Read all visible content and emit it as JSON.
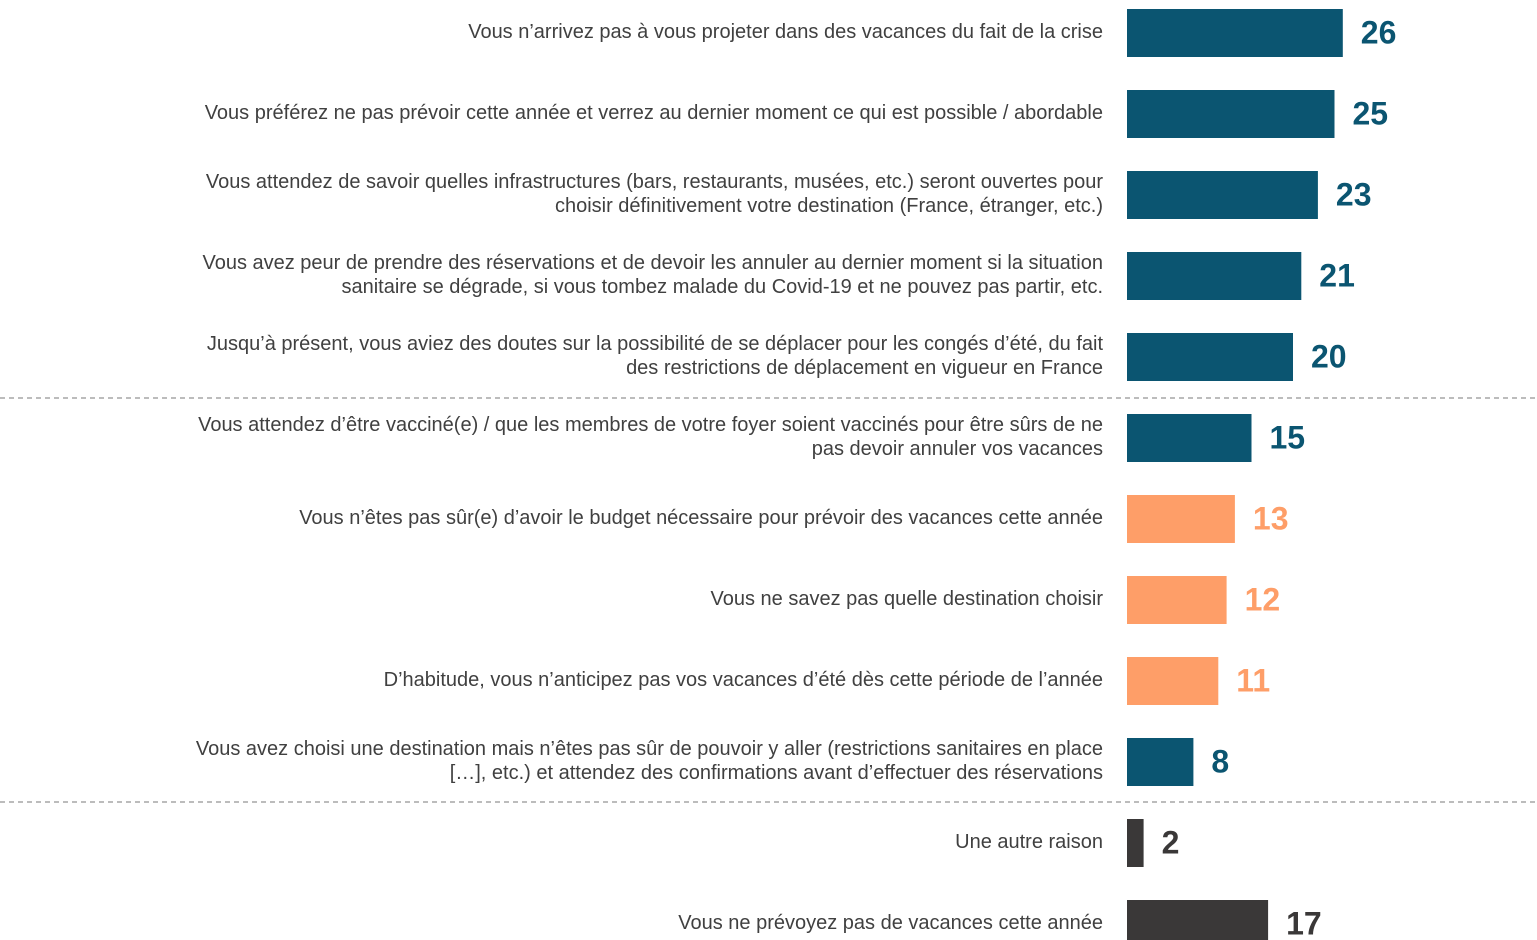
{
  "chart_data": {
    "type": "bar",
    "orientation": "horizontal",
    "categories": [
      "Vous n’arrivez pas à vous projeter dans des vacances du fait de la crise",
      "Vous préférez ne pas prévoir cette année et verrez au dernier moment ce qui est possible / abordable",
      "Vous attendez de savoir quelles infrastructures (bars, restaurants, musées, etc.) seront ouvertes pour\nchoisir définitivement votre destination (France, étranger, etc.)",
      "Vous avez peur de prendre des réservations et de devoir les annuler au dernier moment si la situation\nsanitaire se dégrade, si vous tombez malade du Covid-19 et ne pouvez pas partir, etc.",
      "Jusqu’à présent, vous aviez des doutes sur la possibilité de se déplacer pour les congés d’été, du fait\ndes restrictions de déplacement en vigueur en France",
      "Vous attendez d’être vacciné(e) / que les membres de votre foyer soient vaccinés pour être sûrs de ne\npas devoir annuler vos vacances",
      "Vous n’êtes pas sûr(e) d’avoir le budget nécessaire pour prévoir des vacances cette année",
      "Vous ne savez pas quelle destination choisir",
      "D’habitude, vous n’anticipez pas vos vacances d’été dès cette période de l’année",
      "Vous avez choisi une destination mais n’êtes pas sûr de pouvoir y aller (restrictions sanitaires en place\n[…], etc.) et attendez des confirmations avant d’effectuer des réservations",
      "Une autre raison",
      "Vous ne prévoyez pas de vacances cette année"
    ],
    "values": [
      26,
      25,
      23,
      21,
      20,
      15,
      13,
      12,
      11,
      8,
      2,
      17
    ],
    "colors": [
      "#0b5571",
      "#0b5571",
      "#0b5571",
      "#0b5571",
      "#0b5571",
      "#0b5571",
      "#fe9e68",
      "#fe9e68",
      "#fe9e68",
      "#0b5571",
      "#3a3838",
      "#3a3838"
    ]
  }
}
